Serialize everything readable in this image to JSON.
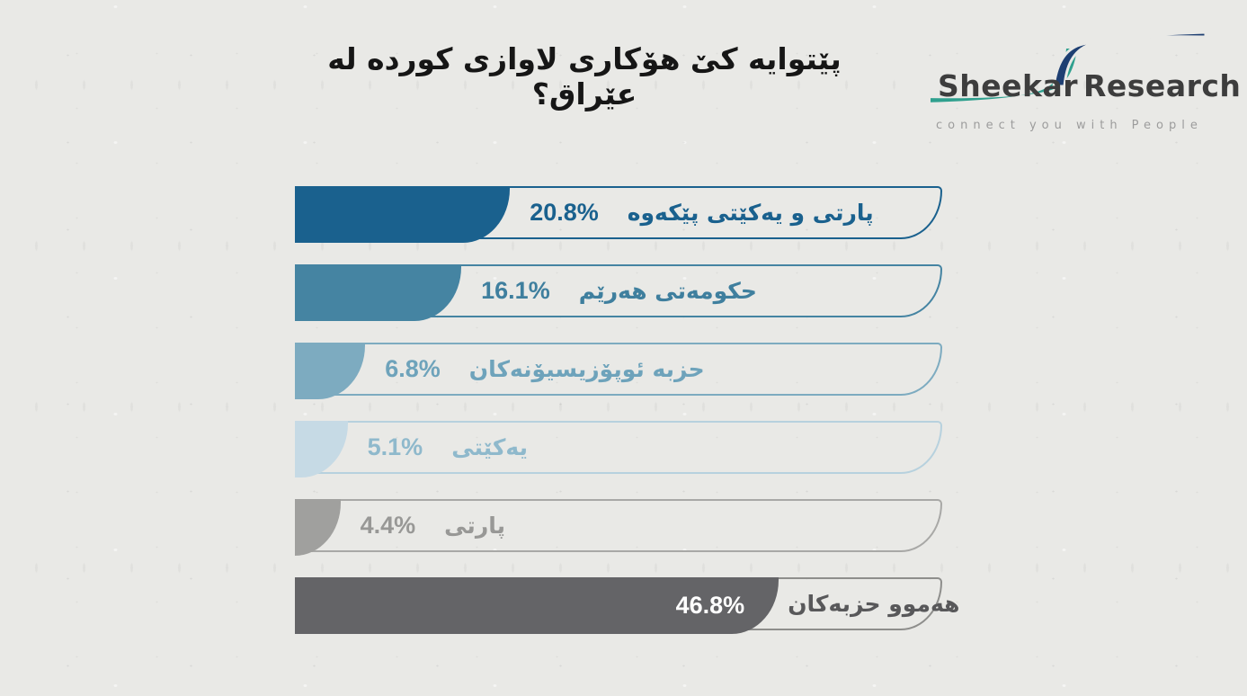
{
  "title": "پێتوایە کێ هۆکاری لاوازی کوردە لە عێراق؟",
  "logo": {
    "word_left": "Sheekar",
    "word_right": "Research",
    "tagline": "connect you with People",
    "swoosh_top_color": "#1e3f72",
    "swoosh_bottom_color": "#2fa08e",
    "text_color": "#3d3d3d"
  },
  "chart_data": {
    "type": "bar",
    "orientation": "horizontal",
    "title": "پێتوایە کێ هۆکاری لاوازی کوردە لە عێراق؟",
    "xlabel": "",
    "ylabel": "",
    "value_unit": "%",
    "axis_range": [
      0,
      62.6
    ],
    "grid": false,
    "legend": false,
    "categories": [
      "پارتی و یەکێتی پێکەوە",
      "حکومەتی هەرێم",
      "حزبە ئوپۆزیسیۆنەکان",
      "یەکێتی",
      "پارتی",
      "هەموو حزبەکان"
    ],
    "values": [
      20.8,
      16.1,
      6.8,
      5.1,
      4.4,
      46.8
    ],
    "bars": [
      {
        "label": "پارتی و یەکێتی پێکەوە",
        "value": 20.8,
        "value_label": "20.8%",
        "fill": "#1a618e",
        "border": "#1a618e",
        "text": "#1a618e",
        "value_inside": false
      },
      {
        "label": "حکومەتی هەرێم",
        "value": 16.1,
        "value_label": "16.1%",
        "fill": "#4584a2",
        "border": "#4584a2",
        "text": "#3f7f9e",
        "value_inside": false
      },
      {
        "label": "حزبە ئوپۆزیسیۆنەکان",
        "value": 6.8,
        "value_label": "6.8%",
        "fill": "#7dabc0",
        "border": "#7dabc0",
        "text": "#6ea3bb",
        "value_inside": false
      },
      {
        "label": "یەکێتی",
        "value": 5.1,
        "value_label": "5.1%",
        "fill": "#c6dae5",
        "border": "#b7d1de",
        "text": "#8fb9cc",
        "value_inside": false
      },
      {
        "label": "پارتی",
        "value": 4.4,
        "value_label": "4.4%",
        "fill": "#a0a09e",
        "border": "#a8a8a6",
        "text": "#989896",
        "value_inside": false
      },
      {
        "label": "هەموو حزبەکان",
        "value": 46.8,
        "value_label": "46.8%",
        "fill": "#646467",
        "border": "#8e8e8c",
        "text": "#58585a",
        "value_inside": true,
        "value_color": "#ffffff"
      }
    ]
  }
}
